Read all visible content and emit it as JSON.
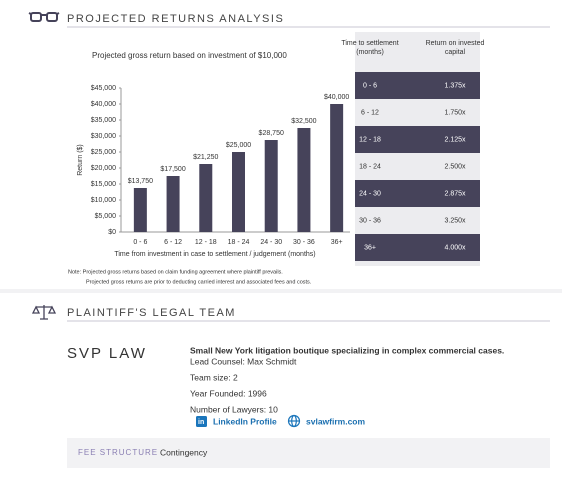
{
  "header": {
    "title": "PROJECTED RETURNS ANALYSIS"
  },
  "chart_data": {
    "type": "bar",
    "title": "Projected gross return based on investment of $10,000",
    "x_label": "Time from investment in case to settlement / judgement (months)",
    "y_label": "Return ($)",
    "categories": [
      "0 - 6",
      "6 - 12",
      "12 - 18",
      "18 - 24",
      "24 - 30",
      "30 - 36",
      "36+"
    ],
    "values": [
      13750,
      17500,
      21250,
      25000,
      28750,
      32500,
      40000
    ],
    "value_labels": [
      "$13,750",
      "$17,500",
      "$21,250",
      "$25,000",
      "$28,750",
      "$32,500",
      "$40,000"
    ],
    "color": "#46435a",
    "ylim": [
      0,
      45000
    ],
    "yticks": [
      {
        "value": 0,
        "label": "$0"
      },
      {
        "value": 5000,
        "label": "$5,000"
      },
      {
        "value": 10000,
        "label": "$10,000"
      },
      {
        "value": 15000,
        "label": "$15,000"
      },
      {
        "value": 20000,
        "label": "$20,000"
      },
      {
        "value": 25000,
        "label": "$25,000"
      },
      {
        "value": 30000,
        "label": "$30,000"
      },
      {
        "value": 35000,
        "label": "$35,000"
      },
      {
        "value": 40000,
        "label": "$40,000"
      },
      {
        "value": 45000,
        "label": "$45,000"
      }
    ]
  },
  "table": {
    "headers": [
      "Time to settlement (months)",
      "Return on invested capital"
    ],
    "rows": [
      [
        "0 - 6",
        "1.375x"
      ],
      [
        "6 - 12",
        "1.750x"
      ],
      [
        "12 - 18",
        "2.125x"
      ],
      [
        "18 - 24",
        "2.500x"
      ],
      [
        "24 - 30",
        "2.875x"
      ],
      [
        "30 - 36",
        "3.250x"
      ],
      [
        "36+",
        "4.000x"
      ]
    ]
  },
  "notes": [
    "Note: Projected gross returns based on claim funding agreement where plaintiff prevails.",
    "Projected gross returns are prior to deducting carried interest and associated fees and costs."
  ],
  "team": {
    "title": "PLAINTIFF'S LEGAL TEAM",
    "firm": "SVP LAW",
    "description": "Small New York litigation boutique specializing in complex commercial cases.",
    "details": [
      "Lead Counsel: Max Schmidt",
      "Team size: 2",
      "Year Founded: 1996",
      "Number of Lawyers: 10"
    ],
    "links": [
      "LinkedIn Profile",
      "svlawfirm.com"
    ],
    "fee_label": "FEE STRUCTURE",
    "fee_value": "Contingency"
  }
}
